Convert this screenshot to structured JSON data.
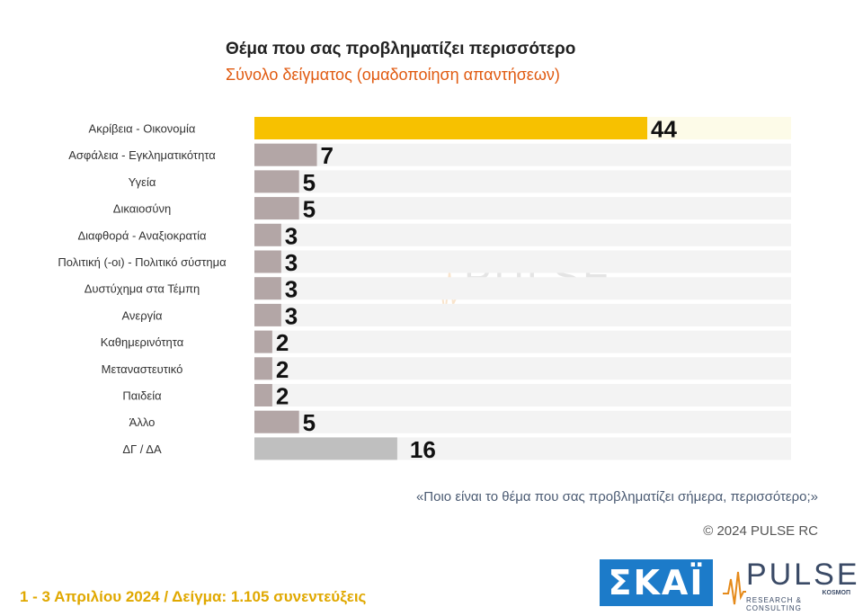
{
  "header": {
    "title": "Θέμα που σας προβληματίζει περισσότερο",
    "subtitle": "Σύνολο δείγματος (ομαδοποίηση απαντήσεων)",
    "subtitle_color": "#e05a10"
  },
  "chart_data": {
    "type": "bar",
    "orientation": "horizontal",
    "categories": [
      "Ακρίβεια - Οικονομία",
      "Ασφάλεια - Εγκληματικότητα",
      "Υγεία",
      "Δικαιοσύνη",
      "Διαφθορά - Αναξιοκρατία",
      "Πολιτική (-οι) - Πολιτικό σύστημα",
      "Δυστύχημα στα Τέμπη",
      "Ανεργία",
      "Καθημερινότητα",
      "Μεταναστευτικό",
      "Παιδεία",
      "Άλλο",
      "ΔΓ / ΔΑ"
    ],
    "values": [
      44,
      7,
      5,
      5,
      3,
      3,
      3,
      3,
      2,
      2,
      2,
      5,
      16
    ],
    "colors": {
      "highlight": "#f7c100",
      "default": "#b3a6a6",
      "no_answer": "#bfbfbf",
      "track": "#f3f3f3",
      "highlight_track": "#fdfbe8"
    },
    "xlim": [
      0,
      60
    ],
    "grid": false,
    "legend": "none"
  },
  "notes": {
    "question": "«Ποιο είναι το θέμα που σας προβληματίζει σήμερα, περισσότερο;»",
    "copyright": "© 2024 PULSE RC"
  },
  "footer": {
    "text": "1 - 3  Απριλίου 2024  /  Δείγμα:  1.105 συνεντεύξεις"
  },
  "logos": {
    "watermark_icon": "pulse-watermark-icon",
    "watermark_text": "PULSE",
    "watermark_sub": "RESEARCH & CONSULTING",
    "skai": "ΣΚΑΪ",
    "skai_color": "#1c7bc9",
    "pulse": "PULSE",
    "pulse_kosmon": "KOSMOΠ",
    "pulse_sub": "RESEARCH & CONSULTING",
    "pulse_color": "#3a4a66"
  }
}
